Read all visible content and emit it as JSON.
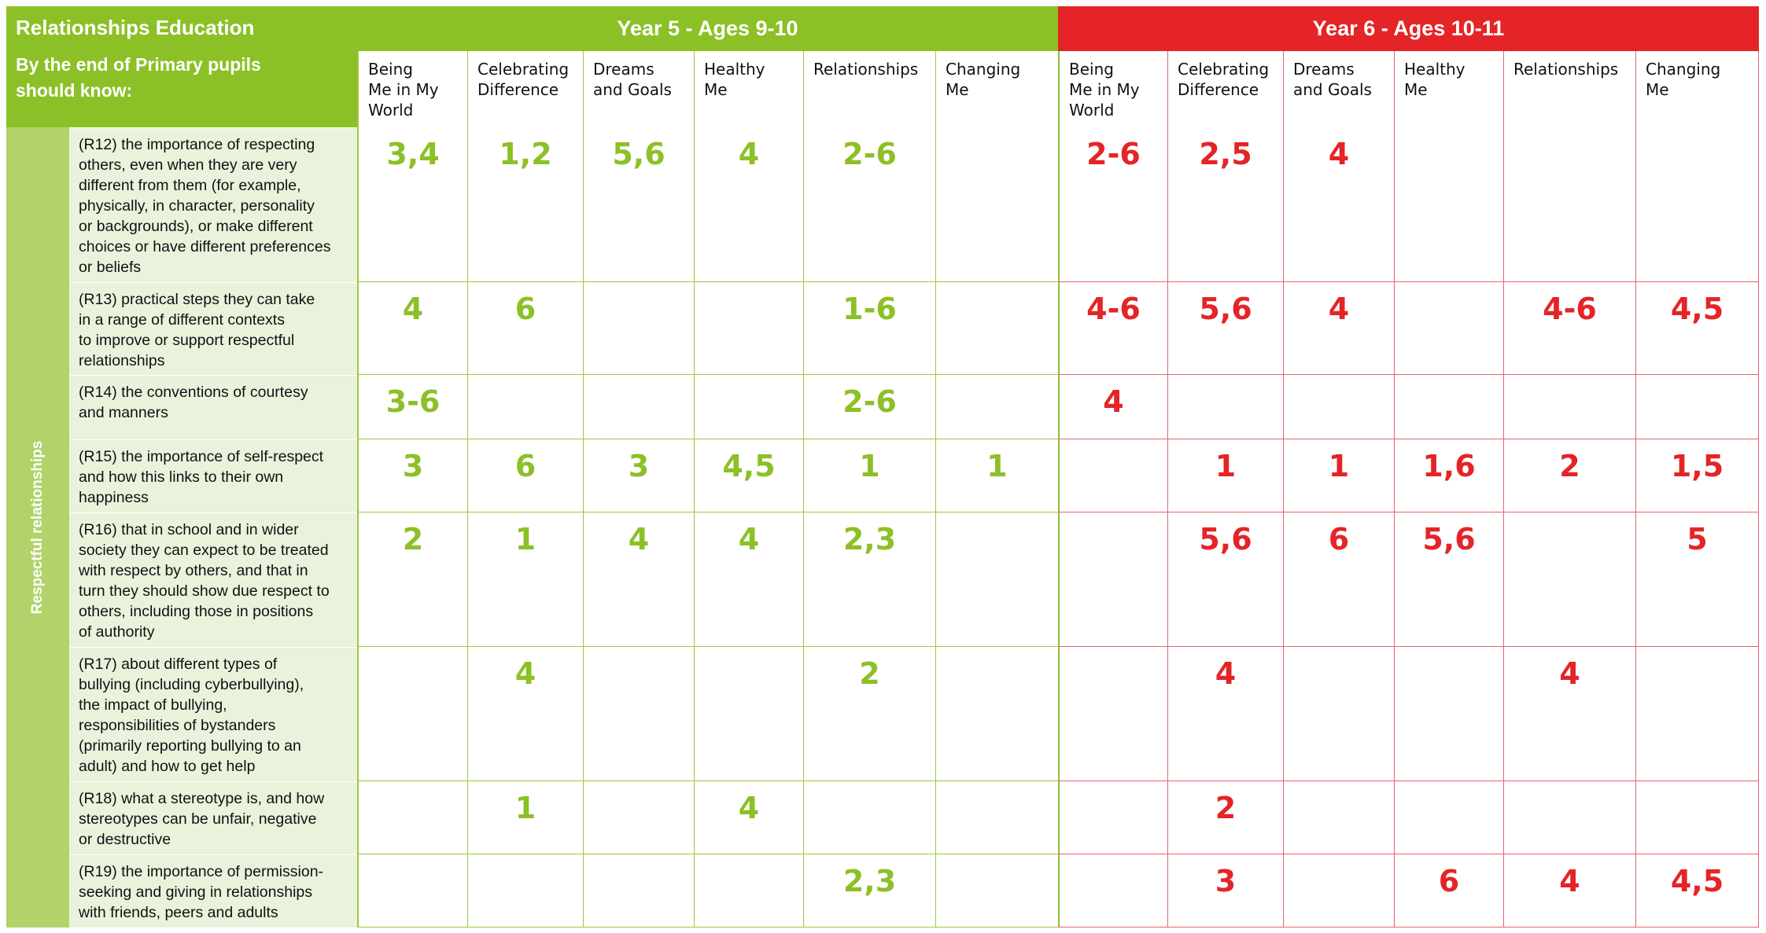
{
  "header": {
    "title": "Relationships Education",
    "subtitle_line1": "By the end of Primary pupils",
    "subtitle_line2": "should know:",
    "year5": "Year 5 - Ages 9-10",
    "year6": "Year 6 - Ages 10-11"
  },
  "colors": {
    "year5": "#8cc027",
    "year6": "#e42426",
    "statement_bg": "#ebf2dc",
    "side_bg": "#b1d36a"
  },
  "columns": {
    "y5": [
      [
        "Being",
        "Me in My",
        "World"
      ],
      [
        "Celebrating",
        "Difference"
      ],
      [
        "Dreams",
        "and Goals"
      ],
      [
        "Healthy",
        "Me"
      ],
      [
        "Relationships"
      ],
      [
        "Changing",
        "Me"
      ]
    ],
    "y6": [
      [
        "Being",
        "Me in My",
        "World"
      ],
      [
        "Celebrating",
        "Difference"
      ],
      [
        "Dreams",
        "and Goals"
      ],
      [
        "Healthy",
        "Me"
      ],
      [
        "Relationships"
      ],
      [
        "Changing",
        "Me"
      ]
    ]
  },
  "side_label": "Respectful relationships",
  "rows": [
    {
      "lines": [
        "(R12) the importance of respecting",
        "others, even when they are very",
        "different from them (for example,",
        "physically, in character, personality",
        "or backgrounds), or make different",
        "choices or have different preferences",
        "or beliefs"
      ],
      "y5": [
        "3,4",
        "1,2",
        "5,6",
        "4",
        "2-6",
        ""
      ],
      "y6": [
        "2-6",
        "2,5",
        "4",
        "",
        "",
        ""
      ]
    },
    {
      "lines": [
        "(R13) practical steps they can take",
        "in a range of different contexts",
        "to improve or support respectful",
        "relationships"
      ],
      "y5": [
        "4",
        "6",
        "",
        "",
        "1-6",
        ""
      ],
      "y6": [
        "4-6",
        "5,6",
        "4",
        "",
        "4-6",
        "4,5"
      ]
    },
    {
      "lines": [
        "(R14) the conventions of courtesy",
        "and manners"
      ],
      "y5": [
        "3-6",
        "",
        "",
        "",
        "2-6",
        ""
      ],
      "y6": [
        "4",
        "",
        "",
        "",
        "",
        ""
      ]
    },
    {
      "lines": [
        "(R15) the importance of self-respect",
        "and how this links to their own",
        "happiness"
      ],
      "y5": [
        "3",
        "6",
        "3",
        "4,5",
        "1",
        "1"
      ],
      "y6": [
        "",
        "1",
        "1",
        "1,6",
        "2",
        "1,5"
      ]
    },
    {
      "lines": [
        "(R16) that in school and in wider",
        "society they can expect to be treated",
        "with respect by others, and that in",
        "turn they should show due respect to",
        "others, including those in positions",
        "of authority"
      ],
      "y5": [
        "2",
        "1",
        "4",
        "4",
        "2,3",
        ""
      ],
      "y6": [
        "",
        "5,6",
        "6",
        "5,6",
        "",
        "5"
      ]
    },
    {
      "lines": [
        "(R17) about different types of",
        "bullying (including cyberbullying),",
        "the impact of bullying,",
        "responsibilities of bystanders",
        "(primarily reporting bullying to an",
        "adult) and how to get help"
      ],
      "y5": [
        "",
        "4",
        "",
        "",
        "2",
        ""
      ],
      "y6": [
        "",
        "4",
        "",
        "",
        "4",
        ""
      ]
    },
    {
      "lines": [
        "(R18) what a stereotype is, and how",
        "stereotypes can be unfair, negative",
        "or destructive"
      ],
      "y5": [
        "",
        "1",
        "",
        "4",
        "",
        ""
      ],
      "y6": [
        "",
        "2",
        "",
        "",
        "",
        ""
      ]
    },
    {
      "lines": [
        "(R19) the importance of permission-",
        "seeking and giving in relationships",
        "with friends, peers and adults"
      ],
      "y5": [
        "",
        "",
        "",
        "",
        "2,3",
        ""
      ],
      "y6": [
        "",
        "3",
        "",
        "6",
        "4",
        "4,5"
      ]
    }
  ]
}
